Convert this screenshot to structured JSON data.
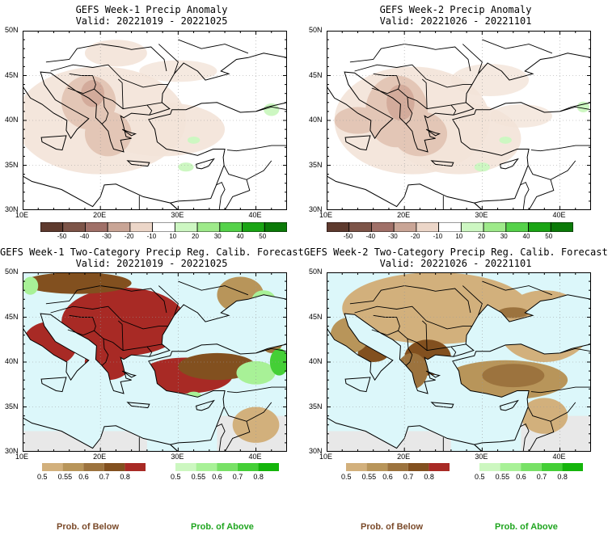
{
  "panels": [
    {
      "title": "GEFS Week-1 Precip Anomaly",
      "valid": "Valid: 20221019 - 20221025"
    },
    {
      "title": "GEFS Week-2 Precip Anomaly",
      "valid": "Valid: 20221026 - 20221101"
    },
    {
      "title": "GEFS Week-1 Two-Category Precip Reg. Calib. Forecast",
      "valid": "Valid: 20221019 - 20221025"
    },
    {
      "title": "GEFS Week-2 Two-Category Precip Reg. Calib. Forecast",
      "valid": "Valid: 20221026 - 20221101"
    }
  ],
  "axes": {
    "lat_labels": [
      "50N",
      "45N",
      "40N",
      "35N",
      "30N"
    ],
    "lon_labels": [
      "10E",
      "20E",
      "30E",
      "40E"
    ]
  },
  "anomaly_colorbar": {
    "labels": [
      "-50",
      "-40",
      "-30",
      "-20",
      "-10",
      "10",
      "20",
      "30",
      "40",
      "50"
    ],
    "colors": [
      "#5e3a2e",
      "#7d5448",
      "#a07068",
      "#c9a596",
      "#ecd6c8",
      "#ffffff",
      "#cdf7c2",
      "#9eea8a",
      "#55d24a",
      "#1aa514",
      "#0b7a08"
    ]
  },
  "prob_colorbar": {
    "below_labels": [
      "0.5",
      "0.55",
      "0.6",
      "0.7",
      "0.8"
    ],
    "above_labels": [
      "0.5",
      "0.55",
      "0.6",
      "0.7",
      "0.8"
    ],
    "below_colors": [
      "#d2b07c",
      "#b8955a",
      "#9c733e",
      "#82501f",
      "#a82a25"
    ],
    "above_colors": [
      "#ccf7c0",
      "#a8f197",
      "#78e166",
      "#44cf36",
      "#14b50b"
    ],
    "below_title": "Prob. of Below",
    "above_title": "Prob. of Above"
  },
  "colors": {
    "sea": "#dcf7fa",
    "nodata": "#e8e8e8",
    "border": "#000000"
  }
}
